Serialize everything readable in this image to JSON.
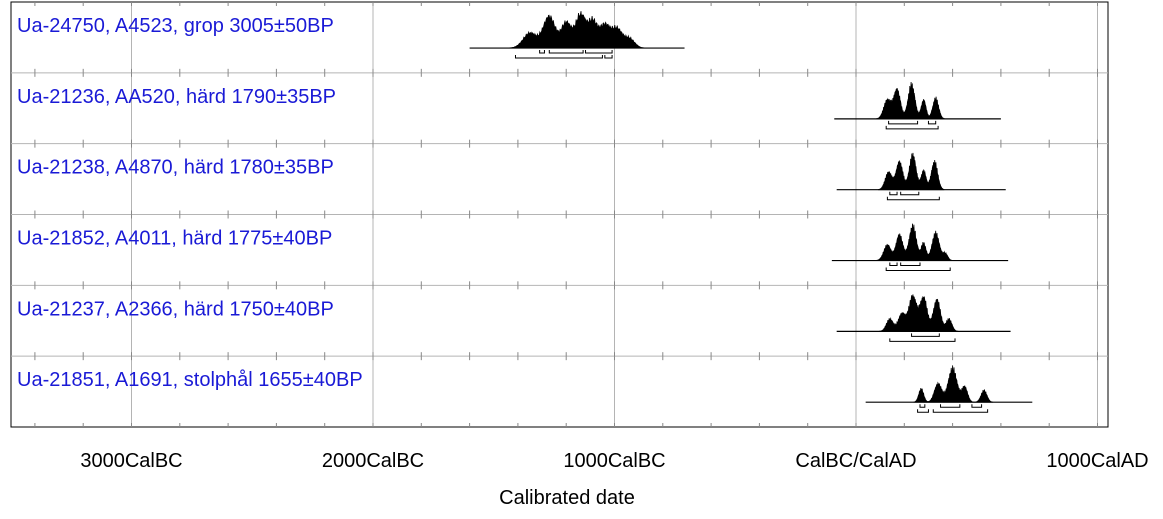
{
  "chart_data": {
    "type": "calibrated-date-multiplot",
    "xlabel": "Calibrated date",
    "xlim": [
      -3400,
      1050
    ],
    "x_ticks": [
      {
        "value": -3000,
        "label": "3000CalBC"
      },
      {
        "value": -2000,
        "label": "2000CalBC"
      },
      {
        "value": -1000,
        "label": "1000CalBC"
      },
      {
        "value": 0,
        "label": "CalBC/CalAD"
      },
      {
        "value": 1000,
        "label": "1000CalAD"
      }
    ],
    "grid": true,
    "series": [
      {
        "label": "Ua-24750, A4523, grop  3005±50BP",
        "baseline_range": [
          -1600,
          -710
        ],
        "peaks": [
          [
            -1350,
            28,
            0.45
          ],
          [
            -1270,
            25,
            0.95
          ],
          [
            -1200,
            20,
            0.75
          ],
          [
            -1140,
            22,
            1.0
          ],
          [
            -1090,
            18,
            0.75
          ],
          [
            -1040,
            22,
            0.7
          ],
          [
            -990,
            20,
            0.55
          ],
          [
            -940,
            22,
            0.3
          ]
        ],
        "ranges_68": [
          [
            -1310,
            -1290
          ],
          [
            -1270,
            -1130
          ],
          [
            -1120,
            -1010
          ]
        ],
        "ranges_95": [
          [
            -1410,
            -1050
          ],
          [
            -1040,
            -1010
          ]
        ]
      },
      {
        "label": "Ua-21236, AA520, härd 1790±35BP",
        "baseline_range": [
          -90,
          600
        ],
        "peaks": [
          [
            130,
            15,
            0.55
          ],
          [
            170,
            14,
            0.85
          ],
          [
            230,
            14,
            1.0
          ],
          [
            280,
            10,
            0.55
          ],
          [
            330,
            12,
            0.6
          ]
        ],
        "ranges_68": [
          [
            135,
            255
          ],
          [
            300,
            330
          ]
        ],
        "ranges_95": [
          [
            125,
            340
          ]
        ]
      },
      {
        "label": "Ua-21238, A4870, härd 1780±35BP",
        "baseline_range": [
          -80,
          620
        ],
        "peaks": [
          [
            135,
            14,
            0.5
          ],
          [
            180,
            14,
            0.8
          ],
          [
            235,
            14,
            1.0
          ],
          [
            280,
            10,
            0.55
          ],
          [
            325,
            13,
            0.8
          ]
        ],
        "ranges_68": [
          [
            140,
            170
          ],
          [
            185,
            260
          ]
        ],
        "ranges_95": [
          [
            130,
            345
          ]
        ]
      },
      {
        "label": "Ua-21852, A4011, härd 1775±40BP",
        "baseline_range": [
          -100,
          630
        ],
        "peaks": [
          [
            130,
            15,
            0.45
          ],
          [
            180,
            14,
            0.75
          ],
          [
            235,
            15,
            1.0
          ],
          [
            280,
            10,
            0.5
          ],
          [
            330,
            15,
            0.8
          ],
          [
            370,
            10,
            0.2
          ]
        ],
        "ranges_68": [
          [
            140,
            170
          ],
          [
            185,
            265
          ]
        ],
        "ranges_95": [
          [
            125,
            390
          ]
        ]
      },
      {
        "label": "Ua-21237, A2366, härd 1750±40BP",
        "baseline_range": [
          -80,
          640
        ],
        "peaks": [
          [
            140,
            14,
            0.35
          ],
          [
            190,
            15,
            0.5
          ],
          [
            235,
            16,
            1.0
          ],
          [
            280,
            15,
            0.95
          ],
          [
            335,
            15,
            0.9
          ],
          [
            385,
            12,
            0.35
          ]
        ],
        "ranges_68": [
          [
            230,
            345
          ]
        ],
        "ranges_95": [
          [
            140,
            410
          ]
        ]
      },
      {
        "label": "Ua-21851, A1691, stolphål 1655±40BP",
        "baseline_range": [
          40,
          730
        ],
        "peaks": [
          [
            270,
            10,
            0.4
          ],
          [
            340,
            15,
            0.55
          ],
          [
            400,
            18,
            1.0
          ],
          [
            450,
            12,
            0.45
          ],
          [
            530,
            12,
            0.35
          ]
        ],
        "ranges_68": [
          [
            265,
            285
          ],
          [
            350,
            430
          ],
          [
            480,
            520
          ]
        ],
        "ranges_95": [
          [
            255,
            300
          ],
          [
            320,
            545
          ]
        ]
      }
    ]
  }
}
